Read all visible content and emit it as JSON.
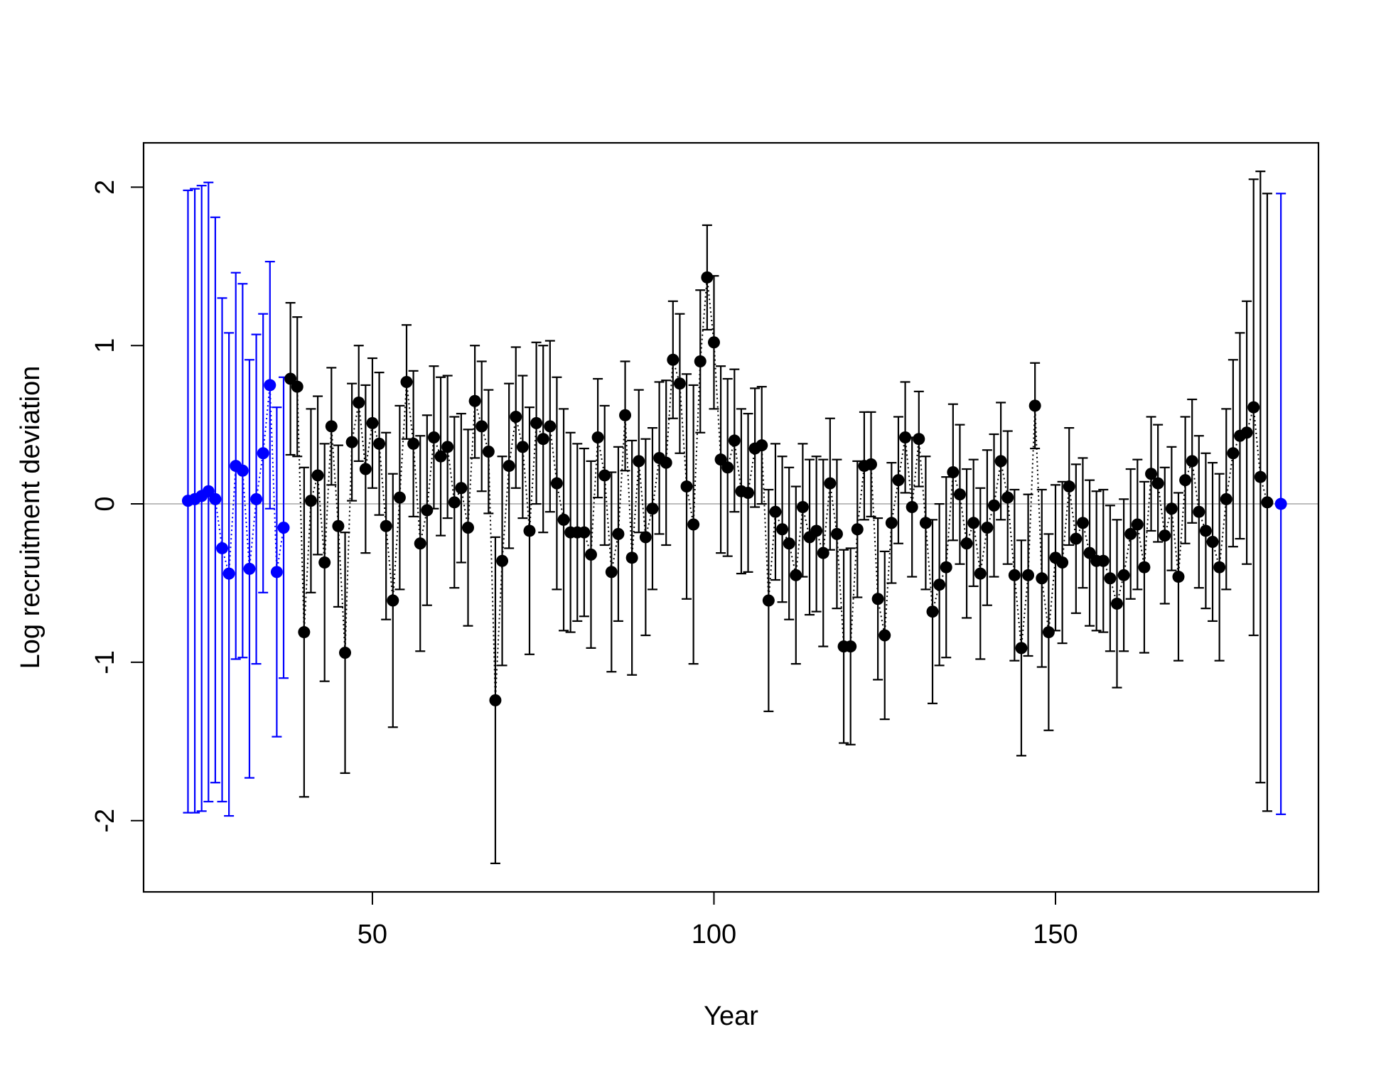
{
  "chart_data": {
    "type": "scatter",
    "title": "",
    "xlabel": "Year",
    "ylabel": "Log recruitment deviation",
    "xlim": [
      16.5,
      188.5
    ],
    "ylim": [
      -2.45,
      2.28
    ],
    "x_ticks": [
      50,
      100,
      150
    ],
    "x_tick_labels": [
      "50",
      "100",
      "150"
    ],
    "y_ticks": [
      -2,
      -1,
      0,
      1,
      2
    ],
    "y_tick_labels": [
      "-2",
      "-1",
      "0",
      "1",
      "2"
    ],
    "reference_line": 0,
    "grid": false,
    "legend": "none",
    "series": [
      {
        "color": "#0000ff",
        "connect": "dotted",
        "points": [
          {
            "x": 23,
            "y": 0.02,
            "lo": -1.95,
            "hi": 1.98
          },
          {
            "x": 24,
            "y": 0.03,
            "lo": -1.95,
            "hi": 1.99
          },
          {
            "x": 25,
            "y": 0.05,
            "lo": -1.94,
            "hi": 2.01
          },
          {
            "x": 26,
            "y": 0.08,
            "lo": -1.88,
            "hi": 2.03
          },
          {
            "x": 27,
            "y": 0.03,
            "lo": -1.76,
            "hi": 1.81
          },
          {
            "x": 28,
            "y": -0.28,
            "lo": -1.88,
            "hi": 1.3
          },
          {
            "x": 29,
            "y": -0.44,
            "lo": -1.97,
            "hi": 1.08
          },
          {
            "x": 30,
            "y": 0.24,
            "lo": -0.98,
            "hi": 1.46
          },
          {
            "x": 31,
            "y": 0.21,
            "lo": -0.97,
            "hi": 1.39
          },
          {
            "x": 32,
            "y": -0.41,
            "lo": -1.73,
            "hi": 0.91
          },
          {
            "x": 33,
            "y": 0.03,
            "lo": -1.01,
            "hi": 1.07
          },
          {
            "x": 34,
            "y": 0.32,
            "lo": -0.56,
            "hi": 1.2
          },
          {
            "x": 35,
            "y": 0.75,
            "lo": -0.03,
            "hi": 1.53
          },
          {
            "x": 36,
            "y": -0.43,
            "lo": -1.47,
            "hi": 0.61
          },
          {
            "x": 37,
            "y": -0.15,
            "lo": -1.1,
            "hi": 0.8
          },
          {
            "x": 183,
            "y": 0.0,
            "lo": -1.96,
            "hi": 1.96
          }
        ]
      },
      {
        "color": "#000000",
        "connect": "dotted",
        "points": [
          {
            "x": 38,
            "y": 0.79,
            "lo": 0.31,
            "hi": 1.27
          },
          {
            "x": 39,
            "y": 0.74,
            "lo": 0.3,
            "hi": 1.18
          },
          {
            "x": 40,
            "y": -0.81,
            "lo": -1.85,
            "hi": 0.23
          },
          {
            "x": 41,
            "y": 0.02,
            "lo": -0.56,
            "hi": 0.6
          },
          {
            "x": 42,
            "y": 0.18,
            "lo": -0.32,
            "hi": 0.68
          },
          {
            "x": 43,
            "y": -0.37,
            "lo": -1.12,
            "hi": 0.38
          },
          {
            "x": 44,
            "y": 0.49,
            "lo": 0.12,
            "hi": 0.86
          },
          {
            "x": 45,
            "y": -0.14,
            "lo": -0.65,
            "hi": 0.37
          },
          {
            "x": 46,
            "y": -0.94,
            "lo": -1.7,
            "hi": -0.18
          },
          {
            "x": 47,
            "y": 0.39,
            "lo": 0.02,
            "hi": 0.76
          },
          {
            "x": 48,
            "y": 0.64,
            "lo": 0.27,
            "hi": 1.0
          },
          {
            "x": 49,
            "y": 0.22,
            "lo": -0.31,
            "hi": 0.75
          },
          {
            "x": 50,
            "y": 0.51,
            "lo": 0.1,
            "hi": 0.92
          },
          {
            "x": 51,
            "y": 0.38,
            "lo": -0.07,
            "hi": 0.83
          },
          {
            "x": 52,
            "y": -0.14,
            "lo": -0.73,
            "hi": 0.45
          },
          {
            "x": 53,
            "y": -0.61,
            "lo": -1.41,
            "hi": 0.19
          },
          {
            "x": 54,
            "y": 0.04,
            "lo": -0.54,
            "hi": 0.62
          },
          {
            "x": 55,
            "y": 0.77,
            "lo": 0.41,
            "hi": 1.13
          },
          {
            "x": 56,
            "y": 0.38,
            "lo": -0.08,
            "hi": 0.84
          },
          {
            "x": 57,
            "y": -0.25,
            "lo": -0.93,
            "hi": 0.43
          },
          {
            "x": 58,
            "y": -0.04,
            "lo": -0.64,
            "hi": 0.56
          },
          {
            "x": 59,
            "y": 0.42,
            "lo": -0.03,
            "hi": 0.87
          },
          {
            "x": 60,
            "y": 0.3,
            "lo": -0.2,
            "hi": 0.8
          },
          {
            "x": 61,
            "y": 0.36,
            "lo": -0.09,
            "hi": 0.81
          },
          {
            "x": 62,
            "y": 0.01,
            "lo": -0.53,
            "hi": 0.55
          },
          {
            "x": 63,
            "y": 0.1,
            "lo": -0.37,
            "hi": 0.57
          },
          {
            "x": 64,
            "y": -0.15,
            "lo": -0.77,
            "hi": 0.47
          },
          {
            "x": 65,
            "y": 0.65,
            "lo": 0.29,
            "hi": 1.0
          },
          {
            "x": 66,
            "y": 0.49,
            "lo": 0.08,
            "hi": 0.9
          },
          {
            "x": 67,
            "y": 0.33,
            "lo": -0.06,
            "hi": 0.72
          },
          {
            "x": 68,
            "y": -1.24,
            "lo": -2.27,
            "hi": -0.21
          },
          {
            "x": 69,
            "y": -0.36,
            "lo": -1.02,
            "hi": 0.3
          },
          {
            "x": 70,
            "y": 0.24,
            "lo": -0.28,
            "hi": 0.76
          },
          {
            "x": 71,
            "y": 0.55,
            "lo": 0.1,
            "hi": 0.99
          },
          {
            "x": 72,
            "y": 0.36,
            "lo": -0.09,
            "hi": 0.81
          },
          {
            "x": 73,
            "y": -0.17,
            "lo": -0.95,
            "hi": 0.61
          },
          {
            "x": 74,
            "y": 0.51,
            "lo": 0.0,
            "hi": 1.02
          },
          {
            "x": 75,
            "y": 0.41,
            "lo": -0.18,
            "hi": 1.0
          },
          {
            "x": 76,
            "y": 0.49,
            "lo": -0.05,
            "hi": 1.03
          },
          {
            "x": 77,
            "y": 0.13,
            "lo": -0.54,
            "hi": 0.8
          },
          {
            "x": 78,
            "y": -0.1,
            "lo": -0.8,
            "hi": 0.6
          },
          {
            "x": 79,
            "y": -0.18,
            "lo": -0.81,
            "hi": 0.45
          },
          {
            "x": 80,
            "y": -0.18,
            "lo": -0.74,
            "hi": 0.38
          },
          {
            "x": 81,
            "y": -0.18,
            "lo": -0.71,
            "hi": 0.35
          },
          {
            "x": 82,
            "y": -0.32,
            "lo": -0.91,
            "hi": 0.27
          },
          {
            "x": 83,
            "y": 0.42,
            "lo": 0.04,
            "hi": 0.79
          },
          {
            "x": 84,
            "y": 0.18,
            "lo": -0.26,
            "hi": 0.62
          },
          {
            "x": 85,
            "y": -0.43,
            "lo": -1.06,
            "hi": 0.2
          },
          {
            "x": 86,
            "y": -0.19,
            "lo": -0.74,
            "hi": 0.36
          },
          {
            "x": 87,
            "y": 0.56,
            "lo": 0.21,
            "hi": 0.9
          },
          {
            "x": 88,
            "y": -0.34,
            "lo": -1.08,
            "hi": 0.4
          },
          {
            "x": 89,
            "y": 0.27,
            "lo": -0.18,
            "hi": 0.72
          },
          {
            "x": 90,
            "y": -0.21,
            "lo": -0.83,
            "hi": 0.41
          },
          {
            "x": 91,
            "y": -0.03,
            "lo": -0.54,
            "hi": 0.48
          },
          {
            "x": 92,
            "y": 0.29,
            "lo": -0.19,
            "hi": 0.77
          },
          {
            "x": 93,
            "y": 0.26,
            "lo": -0.26,
            "hi": 0.78
          },
          {
            "x": 94,
            "y": 0.91,
            "lo": 0.54,
            "hi": 1.28
          },
          {
            "x": 95,
            "y": 0.76,
            "lo": 0.32,
            "hi": 1.2
          },
          {
            "x": 96,
            "y": 0.11,
            "lo": -0.6,
            "hi": 0.82
          },
          {
            "x": 97,
            "y": -0.13,
            "lo": -1.01,
            "hi": 0.75
          },
          {
            "x": 98,
            "y": 0.9,
            "lo": 0.45,
            "hi": 1.35
          },
          {
            "x": 99,
            "y": 1.43,
            "lo": 1.1,
            "hi": 1.76
          },
          {
            "x": 100,
            "y": 1.02,
            "lo": 0.6,
            "hi": 1.44
          },
          {
            "x": 101,
            "y": 0.28,
            "lo": -0.31,
            "hi": 0.87
          },
          {
            "x": 102,
            "y": 0.23,
            "lo": -0.33,
            "hi": 0.79
          },
          {
            "x": 103,
            "y": 0.4,
            "lo": -0.05,
            "hi": 0.85
          },
          {
            "x": 104,
            "y": 0.08,
            "lo": -0.44,
            "hi": 0.6
          },
          {
            "x": 105,
            "y": 0.07,
            "lo": -0.43,
            "hi": 0.57
          },
          {
            "x": 106,
            "y": 0.35,
            "lo": -0.02,
            "hi": 0.73
          },
          {
            "x": 107,
            "y": 0.37,
            "lo": 0.0,
            "hi": 0.74
          },
          {
            "x": 108,
            "y": -0.61,
            "lo": -1.31,
            "hi": 0.09
          },
          {
            "x": 109,
            "y": -0.05,
            "lo": -0.48,
            "hi": 0.38
          },
          {
            "x": 110,
            "y": -0.16,
            "lo": -0.62,
            "hi": 0.3
          },
          {
            "x": 111,
            "y": -0.25,
            "lo": -0.73,
            "hi": 0.23
          },
          {
            "x": 112,
            "y": -0.45,
            "lo": -1.01,
            "hi": 0.11
          },
          {
            "x": 113,
            "y": -0.02,
            "lo": -0.46,
            "hi": 0.38
          },
          {
            "x": 114,
            "y": -0.21,
            "lo": -0.7,
            "hi": 0.28
          },
          {
            "x": 115,
            "y": -0.17,
            "lo": -0.68,
            "hi": 0.3
          },
          {
            "x": 116,
            "y": -0.31,
            "lo": -0.9,
            "hi": 0.28
          },
          {
            "x": 117,
            "y": 0.13,
            "lo": -0.29,
            "hi": 0.54
          },
          {
            "x": 118,
            "y": -0.19,
            "lo": -0.66,
            "hi": 0.28
          },
          {
            "x": 119,
            "y": -0.9,
            "lo": -1.51,
            "hi": -0.29
          },
          {
            "x": 120,
            "y": -0.9,
            "lo": -1.52,
            "hi": -0.28
          },
          {
            "x": 121,
            "y": -0.16,
            "lo": -0.59,
            "hi": 0.27
          },
          {
            "x": 122,
            "y": 0.24,
            "lo": -0.1,
            "hi": 0.58
          },
          {
            "x": 123,
            "y": 0.25,
            "lo": -0.08,
            "hi": 0.58
          },
          {
            "x": 124,
            "y": -0.6,
            "lo": -1.11,
            "hi": -0.09
          },
          {
            "x": 125,
            "y": -0.83,
            "lo": -1.36,
            "hi": -0.3
          },
          {
            "x": 126,
            "y": -0.12,
            "lo": -0.5,
            "hi": 0.26
          },
          {
            "x": 127,
            "y": 0.15,
            "lo": -0.25,
            "hi": 0.55
          },
          {
            "x": 128,
            "y": 0.42,
            "lo": 0.07,
            "hi": 0.77
          },
          {
            "x": 129,
            "y": -0.02,
            "lo": -0.46,
            "hi": 0.42
          },
          {
            "x": 130,
            "y": 0.41,
            "lo": 0.11,
            "hi": 0.71
          },
          {
            "x": 131,
            "y": -0.12,
            "lo": -0.54,
            "hi": 0.3
          },
          {
            "x": 132,
            "y": -0.68,
            "lo": -1.26,
            "hi": -0.1
          },
          {
            "x": 133,
            "y": -0.51,
            "lo": -1.02,
            "hi": 0.0
          },
          {
            "x": 134,
            "y": -0.4,
            "lo": -0.97,
            "hi": 0.17
          },
          {
            "x": 135,
            "y": 0.2,
            "lo": -0.23,
            "hi": 0.63
          },
          {
            "x": 136,
            "y": 0.06,
            "lo": -0.38,
            "hi": 0.5
          },
          {
            "x": 137,
            "y": -0.25,
            "lo": -0.72,
            "hi": 0.22
          },
          {
            "x": 138,
            "y": -0.12,
            "lo": -0.52,
            "hi": 0.28
          },
          {
            "x": 139,
            "y": -0.44,
            "lo": -0.98,
            "hi": 0.1
          },
          {
            "x": 140,
            "y": -0.15,
            "lo": -0.64,
            "hi": 0.34
          },
          {
            "x": 141,
            "y": -0.01,
            "lo": -0.46,
            "hi": 0.44
          },
          {
            "x": 142,
            "y": 0.27,
            "lo": -0.1,
            "hi": 0.64
          },
          {
            "x": 143,
            "y": 0.04,
            "lo": -0.38,
            "hi": 0.46
          },
          {
            "x": 144,
            "y": -0.45,
            "lo": -0.99,
            "hi": 0.09
          },
          {
            "x": 145,
            "y": -0.91,
            "lo": -1.59,
            "hi": -0.23
          },
          {
            "x": 146,
            "y": -0.45,
            "lo": -0.96,
            "hi": 0.06
          },
          {
            "x": 147,
            "y": 0.62,
            "lo": 0.35,
            "hi": 0.89
          },
          {
            "x": 148,
            "y": -0.47,
            "lo": -1.03,
            "hi": 0.09
          },
          {
            "x": 149,
            "y": -0.81,
            "lo": -1.43,
            "hi": -0.19
          },
          {
            "x": 150,
            "y": -0.34,
            "lo": -0.8,
            "hi": 0.12
          },
          {
            "x": 151,
            "y": -0.37,
            "lo": -0.88,
            "hi": 0.14
          },
          {
            "x": 152,
            "y": 0.11,
            "lo": -0.26,
            "hi": 0.48
          },
          {
            "x": 153,
            "y": -0.22,
            "lo": -0.69,
            "hi": 0.25
          },
          {
            "x": 154,
            "y": -0.12,
            "lo": -0.53,
            "hi": 0.29
          },
          {
            "x": 155,
            "y": -0.31,
            "lo": -0.77,
            "hi": 0.15
          },
          {
            "x": 156,
            "y": -0.36,
            "lo": -0.8,
            "hi": 0.08
          },
          {
            "x": 157,
            "y": -0.36,
            "lo": -0.81,
            "hi": 0.09
          },
          {
            "x": 158,
            "y": -0.47,
            "lo": -0.93,
            "hi": -0.01
          },
          {
            "x": 159,
            "y": -0.63,
            "lo": -1.16,
            "hi": -0.1
          },
          {
            "x": 160,
            "y": -0.45,
            "lo": -0.93,
            "hi": 0.03
          },
          {
            "x": 161,
            "y": -0.19,
            "lo": -0.6,
            "hi": 0.22
          },
          {
            "x": 162,
            "y": -0.13,
            "lo": -0.54,
            "hi": 0.28
          },
          {
            "x": 163,
            "y": -0.4,
            "lo": -0.94,
            "hi": 0.14
          },
          {
            "x": 164,
            "y": 0.19,
            "lo": -0.17,
            "hi": 0.55
          },
          {
            "x": 165,
            "y": 0.13,
            "lo": -0.24,
            "hi": 0.5
          },
          {
            "x": 166,
            "y": -0.2,
            "lo": -0.63,
            "hi": 0.23
          },
          {
            "x": 167,
            "y": -0.03,
            "lo": -0.42,
            "hi": 0.36
          },
          {
            "x": 168,
            "y": -0.46,
            "lo": -0.99,
            "hi": 0.07
          },
          {
            "x": 169,
            "y": 0.15,
            "lo": -0.25,
            "hi": 0.55
          },
          {
            "x": 170,
            "y": 0.27,
            "lo": -0.12,
            "hi": 0.66
          },
          {
            "x": 171,
            "y": -0.05,
            "lo": -0.53,
            "hi": 0.43
          },
          {
            "x": 172,
            "y": -0.17,
            "lo": -0.66,
            "hi": 0.32
          },
          {
            "x": 173,
            "y": -0.24,
            "lo": -0.74,
            "hi": 0.26
          },
          {
            "x": 174,
            "y": -0.4,
            "lo": -0.99,
            "hi": 0.19
          },
          {
            "x": 175,
            "y": 0.03,
            "lo": -0.54,
            "hi": 0.6
          },
          {
            "x": 176,
            "y": 0.32,
            "lo": -0.27,
            "hi": 0.91
          },
          {
            "x": 177,
            "y": 0.43,
            "lo": -0.22,
            "hi": 1.08
          },
          {
            "x": 178,
            "y": 0.45,
            "lo": -0.38,
            "hi": 1.28
          },
          {
            "x": 179,
            "y": 0.61,
            "lo": -0.83,
            "hi": 2.05
          },
          {
            "x": 180,
            "y": 0.17,
            "lo": -1.76,
            "hi": 2.1
          },
          {
            "x": 181,
            "y": 0.01,
            "lo": -1.94,
            "hi": 1.96
          }
        ]
      }
    ]
  }
}
